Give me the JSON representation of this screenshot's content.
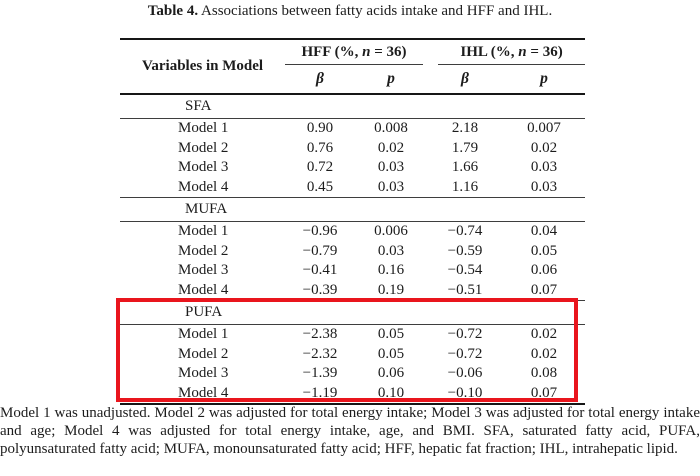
{
  "caption": {
    "label": "Table 4.",
    "text": "Associations between fatty acids intake and HFF and IHL."
  },
  "table": {
    "variables_header": "Variables in Model",
    "groups": [
      {
        "name": "HFF",
        "pre": "HFF (%, ",
        "italic": "n",
        "post": " = 36)"
      },
      {
        "name": "IHL",
        "pre": "IHL (%, ",
        "italic": "n",
        "post": " = 36)"
      }
    ],
    "subheaders": [
      "β",
      "p",
      "β",
      "p"
    ],
    "sections": [
      {
        "label": "SFA",
        "highlighted": false,
        "rows": [
          {
            "model": "Model 1",
            "values": [
              "0.90",
              "0.008",
              "2.18",
              "0.007"
            ]
          },
          {
            "model": "Model 2",
            "values": [
              "0.76",
              "0.02",
              "1.79",
              "0.02"
            ]
          },
          {
            "model": "Model 3",
            "values": [
              "0.72",
              "0.03",
              "1.66",
              "0.03"
            ]
          },
          {
            "model": "Model 4",
            "values": [
              "0.45",
              "0.03",
              "1.16",
              "0.03"
            ]
          }
        ]
      },
      {
        "label": "MUFA",
        "highlighted": false,
        "rows": [
          {
            "model": "Model 1",
            "values": [
              "−0.96",
              "0.006",
              "−0.74",
              "0.04"
            ]
          },
          {
            "model": "Model 2",
            "values": [
              "−0.79",
              "0.03",
              "−0.59",
              "0.05"
            ]
          },
          {
            "model": "Model 3",
            "values": [
              "−0.41",
              "0.16",
              "−0.54",
              "0.06"
            ]
          },
          {
            "model": "Model 4",
            "values": [
              "−0.39",
              "0.19",
              "−0.51",
              "0.07"
            ]
          }
        ]
      },
      {
        "label": "PUFA",
        "highlighted": true,
        "rows": [
          {
            "model": "Model 1",
            "values": [
              "−2.38",
              "0.05",
              "−0.72",
              "0.02"
            ]
          },
          {
            "model": "Model 2",
            "values": [
              "−2.32",
              "0.05",
              "−0.72",
              "0.02"
            ]
          },
          {
            "model": "Model 3",
            "values": [
              "−1.39",
              "0.06",
              "−0.06",
              "0.08"
            ]
          },
          {
            "model": "Model 4",
            "values": [
              "−1.19",
              "0.10",
              "−0.10",
              "0.07"
            ]
          }
        ]
      }
    ]
  },
  "footnote": {
    "text": "Model 1 was unadjusted. Model 2 was adjusted for total energy intake; Model 3 was adjusted for total energy intake and age; Model 4 was adjusted for total energy intake, age, and BMI. SFA, saturated fatty acid, PUFA, polyunsaturated fatty acid; MUFA, monounsaturated fatty acid; HFF, hepatic fat fraction; IHL, intrahepatic lipid."
  },
  "colors": {
    "highlight_box": "#e9151d",
    "rule_dark": "#161616",
    "rule_light": "#3e3e3e",
    "text": "#1c1c1c",
    "background": "#ffffff"
  }
}
